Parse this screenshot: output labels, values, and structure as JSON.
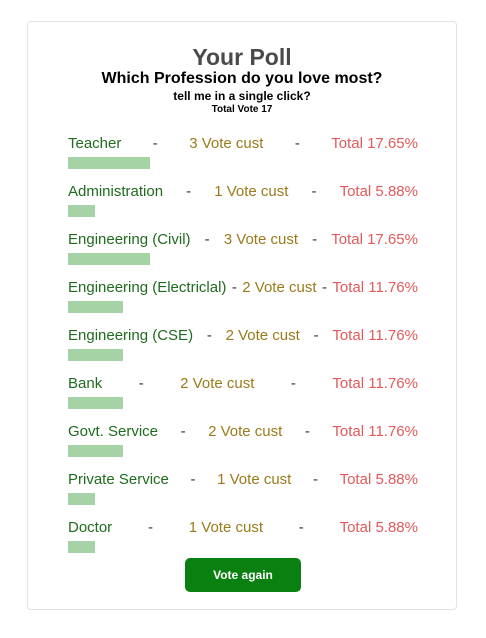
{
  "poll": {
    "title": "Your Poll",
    "question": "Which Profession do you love most?",
    "subtitle": "tell me in a single click?",
    "total_label": "Total Vote 17",
    "total_votes": 17,
    "separator": "-",
    "options": [
      {
        "name": "Teacher",
        "votes_label": "3 Vote cust",
        "percent_label": "Total 17.65%",
        "percent": 17.65
      },
      {
        "name": "Administration",
        "votes_label": "1 Vote cust",
        "percent_label": "Total 5.88%",
        "percent": 5.88
      },
      {
        "name": "Engineering (Civil)",
        "votes_label": "3 Vote cust",
        "percent_label": "Total 17.65%",
        "percent": 17.65
      },
      {
        "name": "Engineering (Electriclal)",
        "votes_label": "2 Vote cust",
        "percent_label": "Total 11.76%",
        "percent": 11.76
      },
      {
        "name": "Engineering (CSE)",
        "votes_label": "2 Vote cust",
        "percent_label": "Total 11.76%",
        "percent": 11.76
      },
      {
        "name": "Bank",
        "votes_label": "2 Vote cust",
        "percent_label": "Total 11.76%",
        "percent": 11.76
      },
      {
        "name": "Govt. Service",
        "votes_label": "2 Vote cust",
        "percent_label": "Total 11.76%",
        "percent": 11.76
      },
      {
        "name": "Private Service",
        "votes_label": "1 Vote cust",
        "percent_label": "Total 5.88%",
        "percent": 5.88
      },
      {
        "name": "Doctor",
        "votes_label": "1 Vote cust",
        "percent_label": "Total 5.88%",
        "percent": 5.88
      }
    ],
    "vote_again_label": "Vote again"
  },
  "colors": {
    "bar": "#a6d3a6",
    "name": "#1f6b1f",
    "votes": "#9a7a1a",
    "percent": "#e25a5a",
    "button": "#0a8010"
  }
}
